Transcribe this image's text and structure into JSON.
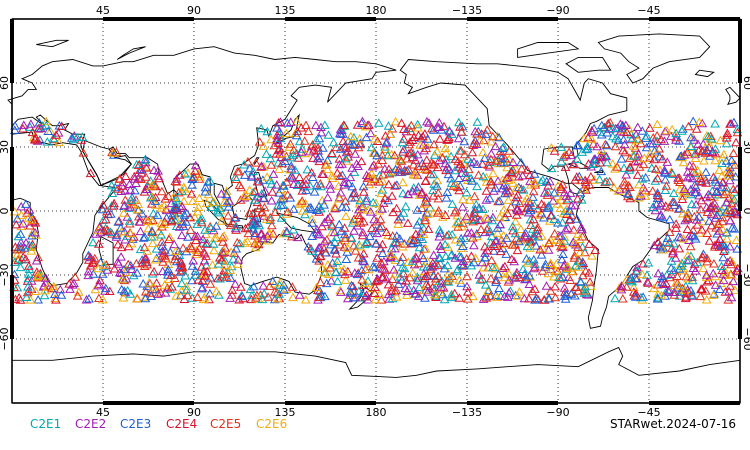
{
  "map": {
    "projection": "cylindrical-equidistant",
    "center_longitude": 180,
    "lat_range": [
      -90,
      90
    ],
    "lon_range": [
      0,
      360
    ],
    "grid": true,
    "grid_lons": [
      45,
      90,
      135,
      180,
      225,
      270,
      315
    ],
    "grid_lats": [
      -60,
      -30,
      0,
      30,
      60
    ],
    "top_lon_labels": [
      "45",
      "90",
      "135",
      "180",
      "−135",
      "−90",
      "−45"
    ],
    "bottom_lon_labels": [
      "45",
      "90",
      "135",
      "180",
      "−135",
      "−90",
      "−45"
    ],
    "left_lat_labels": [
      "60",
      "30",
      "0",
      "−30",
      "−60"
    ],
    "right_lat_labels": [
      "60",
      "30",
      "0",
      "−30",
      "−60"
    ],
    "marker_shape": "triangle-outline",
    "marker_lat_range": [
      -42,
      42
    ]
  },
  "legend": [
    {
      "label": "C2E1",
      "color": "#00a9b6"
    },
    {
      "label": "C2E2",
      "color": "#a21db4"
    },
    {
      "label": "C2E3",
      "color": "#1f5fd6"
    },
    {
      "label": "C2E4",
      "color": "#d8132e"
    },
    {
      "label": "C2E5",
      "color": "#e0301e"
    },
    {
      "label": "C2E6",
      "color": "#f2ac0a"
    }
  ],
  "footer": {
    "stamp": "STARwet.2024-07-16"
  }
}
